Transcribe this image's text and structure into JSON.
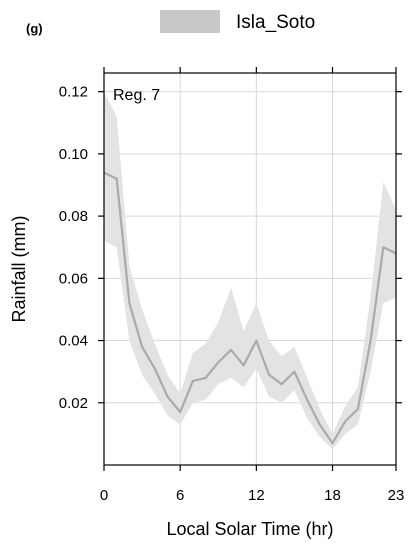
{
  "chart_data": {
    "type": "line",
    "panel_label": "(g)",
    "region_label": "Reg. 7",
    "xlabel": "Local Solar Time (hr)",
    "ylabel": "Rainfall (mm)",
    "xlim": [
      0,
      23
    ],
    "ylim": [
      0.0,
      0.126
    ],
    "x_ticks": [
      0,
      6,
      12,
      18,
      23
    ],
    "y_ticks": [
      0.02,
      0.04,
      0.06,
      0.08,
      0.1,
      0.12
    ],
    "y_tick_labels": [
      "0.02",
      "0.04",
      "0.06",
      "0.08",
      "0.10",
      "0.12"
    ],
    "grid": true,
    "legend_position": "top",
    "colors": {
      "line": "#aaaaaa",
      "band": "#e3e3e3",
      "legend_patch": "#c8c8c8"
    },
    "series": [
      {
        "name": "Isla_Soto",
        "x": [
          0,
          1,
          2,
          3,
          4,
          5,
          6,
          7,
          8,
          9,
          10,
          11,
          12,
          13,
          14,
          15,
          16,
          17,
          18,
          19,
          20,
          21,
          22,
          23
        ],
        "values": [
          0.094,
          0.092,
          0.052,
          0.038,
          0.031,
          0.022,
          0.017,
          0.027,
          0.028,
          0.033,
          0.037,
          0.032,
          0.04,
          0.029,
          0.026,
          0.03,
          0.021,
          0.013,
          0.007,
          0.014,
          0.018,
          0.04,
          0.07,
          0.068
        ],
        "lower": [
          0.072,
          0.07,
          0.04,
          0.029,
          0.023,
          0.016,
          0.013,
          0.02,
          0.021,
          0.026,
          0.028,
          0.025,
          0.031,
          0.022,
          0.02,
          0.024,
          0.015,
          0.009,
          0.005,
          0.01,
          0.013,
          0.03,
          0.052,
          0.054
        ],
        "upper": [
          0.12,
          0.112,
          0.064,
          0.05,
          0.039,
          0.029,
          0.023,
          0.036,
          0.039,
          0.046,
          0.057,
          0.043,
          0.052,
          0.04,
          0.035,
          0.038,
          0.028,
          0.018,
          0.01,
          0.019,
          0.025,
          0.054,
          0.091,
          0.082
        ]
      }
    ]
  }
}
